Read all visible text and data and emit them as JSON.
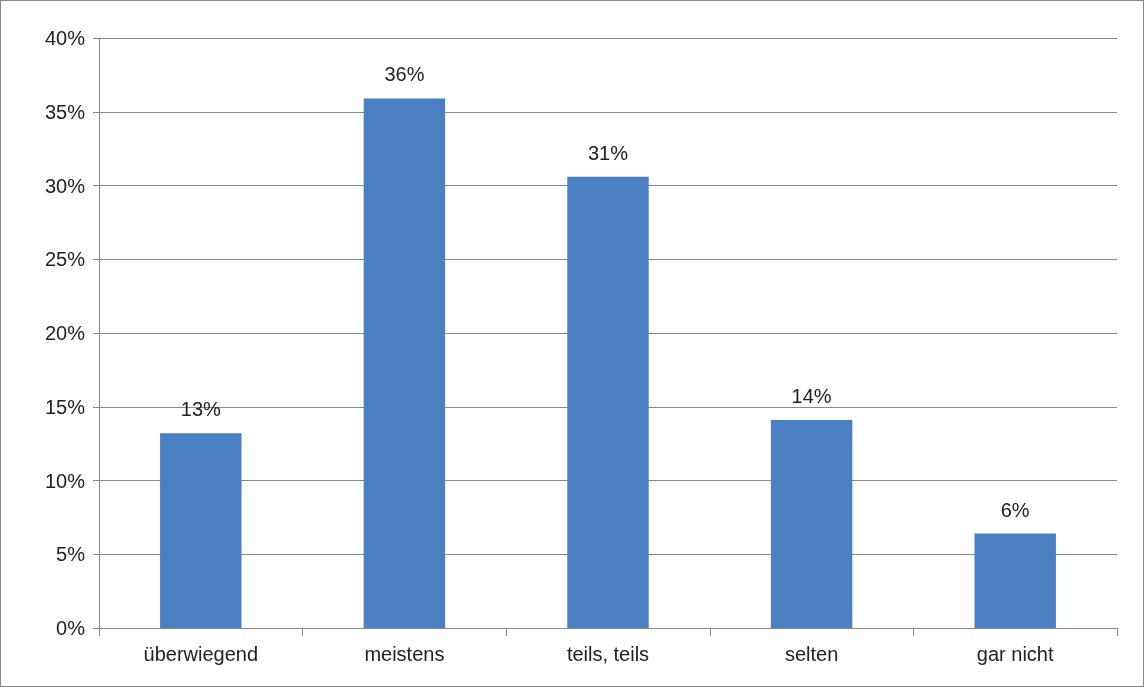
{
  "chart_data": {
    "type": "bar",
    "categories": [
      "überwiegend",
      "meistens",
      "teils, teils",
      "selten",
      "gar nicht"
    ],
    "values": [
      13.2,
      35.9,
      30.6,
      14.1,
      6.4
    ],
    "value_labels": [
      "13%",
      "36%",
      "31%",
      "14%",
      "6%"
    ],
    "color": "#4a7fc1",
    "ylim": [
      0,
      40
    ],
    "yticks": [
      {
        "value": 0,
        "label": "0%"
      },
      {
        "value": 5,
        "label": "5%"
      },
      {
        "value": 10,
        "label": "10%"
      },
      {
        "value": 15,
        "label": "15%"
      },
      {
        "value": 20,
        "label": "20%"
      },
      {
        "value": 25,
        "label": "25%"
      },
      {
        "value": 30,
        "label": "30%"
      },
      {
        "value": 35,
        "label": "35%"
      },
      {
        "value": 40,
        "label": "40%"
      }
    ],
    "grid": "y"
  }
}
